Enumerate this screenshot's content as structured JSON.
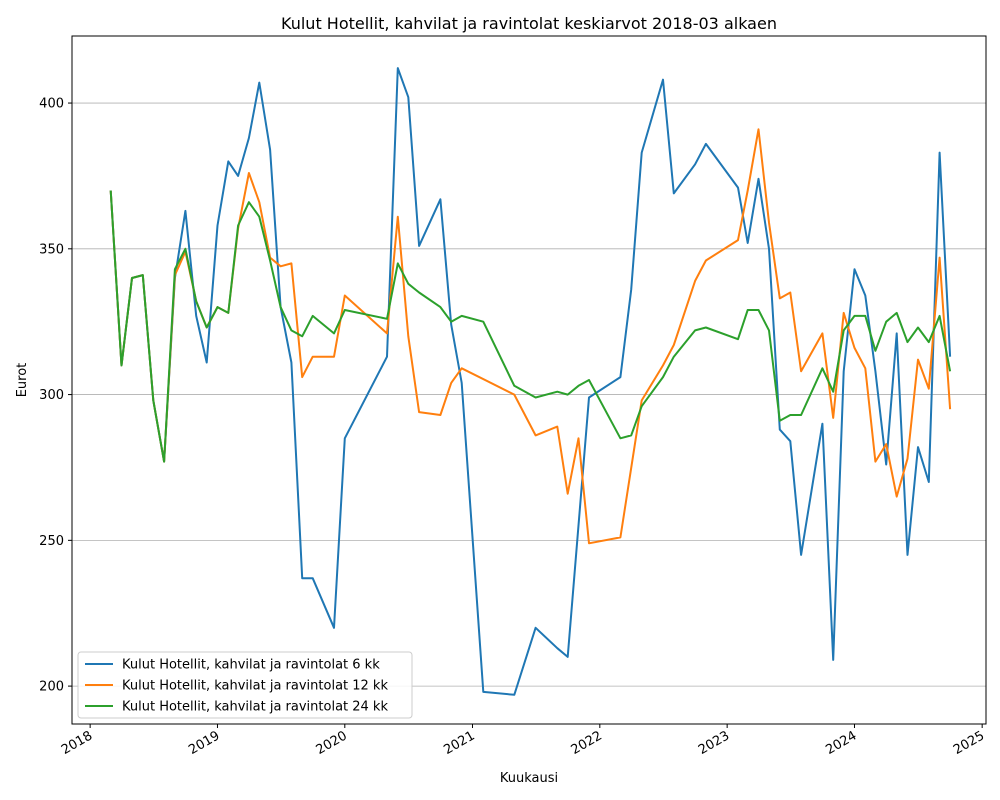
{
  "chart_data": {
    "type": "line",
    "title": "Kulut Hotellit, kahvilat ja ravintolat keskiarvot 2018-03 alkaen",
    "xlabel": "Kuukausi",
    "ylabel": "Eurot",
    "x_ticks": [
      "2018",
      "2019",
      "2020",
      "2021",
      "2022",
      "2023",
      "2024",
      "2025"
    ],
    "y_ticks": [
      200,
      250,
      300,
      350,
      400
    ],
    "xlim": [
      "2017-11-10",
      "2025-01-12"
    ],
    "ylim": [
      187,
      423
    ],
    "grid": "horizontal",
    "legend_position": "lower-left",
    "series": [
      {
        "name": "Kulut Hotellit, kahvilat ja ravintolat 6 kk",
        "color": "#1f77b4",
        "points": [
          [
            "2018-03-01",
            370
          ],
          [
            "2018-04-01",
            310
          ],
          [
            "2018-05-01",
            340
          ],
          [
            "2018-06-01",
            341
          ],
          [
            "2018-07-01",
            298
          ],
          [
            "2018-08-01",
            277
          ],
          [
            "2018-09-01",
            340
          ],
          [
            "2018-10-01",
            363
          ],
          [
            "2018-11-01",
            327
          ],
          [
            "2018-12-01",
            311
          ],
          [
            "2019-01-01",
            358
          ],
          [
            "2019-02-01",
            380
          ],
          [
            "2019-03-01",
            375
          ],
          [
            "2019-04-01",
            388
          ],
          [
            "2019-05-01",
            407
          ],
          [
            "2019-06-01",
            384
          ],
          [
            "2019-07-01",
            330
          ],
          [
            "2019-08-01",
            311
          ],
          [
            "2019-09-01",
            237
          ],
          [
            "2019-10-01",
            237
          ],
          [
            "2019-12-01",
            220
          ],
          [
            "2020-01-01",
            285
          ],
          [
            "2020-05-01",
            313
          ],
          [
            "2020-06-01",
            412
          ],
          [
            "2020-07-01",
            402
          ],
          [
            "2020-08-01",
            351
          ],
          [
            "2020-10-01",
            367
          ],
          [
            "2020-11-01",
            324
          ],
          [
            "2020-12-01",
            304
          ],
          [
            "2021-02-01",
            198
          ],
          [
            "2021-05-01",
            197
          ],
          [
            "2021-07-01",
            220
          ],
          [
            "2021-09-01",
            213
          ],
          [
            "2021-10-01",
            210
          ],
          [
            "2021-12-01",
            299
          ],
          [
            "2022-03-01",
            306
          ],
          [
            "2022-04-01",
            336
          ],
          [
            "2022-05-01",
            383
          ],
          [
            "2022-07-01",
            408
          ],
          [
            "2022-08-01",
            369
          ],
          [
            "2022-10-01",
            379
          ],
          [
            "2022-11-01",
            386
          ],
          [
            "2023-02-01",
            371
          ],
          [
            "2023-03-01",
            352
          ],
          [
            "2023-04-01",
            374
          ],
          [
            "2023-05-01",
            350
          ],
          [
            "2023-06-01",
            288
          ],
          [
            "2023-07-01",
            284
          ],
          [
            "2023-08-01",
            245
          ],
          [
            "2023-10-01",
            290
          ],
          [
            "2023-11-01",
            209
          ],
          [
            "2023-12-01",
            308
          ],
          [
            "2024-01-01",
            343
          ],
          [
            "2024-02-01",
            334
          ],
          [
            "2024-03-01",
            308
          ],
          [
            "2024-04-01",
            276
          ],
          [
            "2024-05-01",
            321
          ],
          [
            "2024-06-01",
            245
          ],
          [
            "2024-07-01",
            282
          ],
          [
            "2024-08-01",
            270
          ],
          [
            "2024-09-01",
            383
          ],
          [
            "2024-10-01",
            313
          ]
        ]
      },
      {
        "name": "Kulut Hotellit, kahvilat ja ravintolat 12 kk",
        "color": "#ff7f0e",
        "points": [
          [
            "2018-03-01",
            370
          ],
          [
            "2018-04-01",
            310
          ],
          [
            "2018-05-01",
            340
          ],
          [
            "2018-06-01",
            341
          ],
          [
            "2018-07-01",
            298
          ],
          [
            "2018-08-01",
            277
          ],
          [
            "2018-09-01",
            341
          ],
          [
            "2018-10-01",
            349
          ],
          [
            "2018-11-01",
            332
          ],
          [
            "2018-12-01",
            323
          ],
          [
            "2019-01-01",
            330
          ],
          [
            "2019-02-01",
            328
          ],
          [
            "2019-03-01",
            357
          ],
          [
            "2019-04-01",
            376
          ],
          [
            "2019-05-01",
            366
          ],
          [
            "2019-06-01",
            347
          ],
          [
            "2019-07-01",
            344
          ],
          [
            "2019-08-01",
            345
          ],
          [
            "2019-09-01",
            306
          ],
          [
            "2019-10-01",
            313
          ],
          [
            "2019-12-01",
            313
          ],
          [
            "2020-01-01",
            334
          ],
          [
            "2020-05-01",
            321
          ],
          [
            "2020-06-01",
            361
          ],
          [
            "2020-07-01",
            320
          ],
          [
            "2020-08-01",
            294
          ],
          [
            "2020-10-01",
            293
          ],
          [
            "2020-11-01",
            304
          ],
          [
            "2020-12-01",
            309
          ],
          [
            "2021-05-01",
            300
          ],
          [
            "2021-07-01",
            286
          ],
          [
            "2021-09-01",
            289
          ],
          [
            "2021-10-01",
            266
          ],
          [
            "2021-11-01",
            285
          ],
          [
            "2021-12-01",
            249
          ],
          [
            "2022-03-01",
            251
          ],
          [
            "2022-05-01",
            298
          ],
          [
            "2022-07-01",
            310
          ],
          [
            "2022-08-01",
            317
          ],
          [
            "2022-10-01",
            339
          ],
          [
            "2022-11-01",
            346
          ],
          [
            "2023-02-01",
            353
          ],
          [
            "2023-03-01",
            370
          ],
          [
            "2023-04-01",
            391
          ],
          [
            "2023-05-01",
            359
          ],
          [
            "2023-06-01",
            333
          ],
          [
            "2023-07-01",
            335
          ],
          [
            "2023-08-01",
            308
          ],
          [
            "2023-10-01",
            321
          ],
          [
            "2023-11-01",
            292
          ],
          [
            "2023-12-01",
            328
          ],
          [
            "2024-01-01",
            316
          ],
          [
            "2024-02-01",
            309
          ],
          [
            "2024-03-01",
            277
          ],
          [
            "2024-04-01",
            283
          ],
          [
            "2024-05-01",
            265
          ],
          [
            "2024-06-01",
            278
          ],
          [
            "2024-07-01",
            312
          ],
          [
            "2024-08-01",
            302
          ],
          [
            "2024-09-01",
            347
          ],
          [
            "2024-10-01",
            295
          ]
        ]
      },
      {
        "name": "Kulut Hotellit, kahvilat ja ravintolat 24 kk",
        "color": "#2ca02c",
        "points": [
          [
            "2018-03-01",
            370
          ],
          [
            "2018-04-01",
            310
          ],
          [
            "2018-05-01",
            340
          ],
          [
            "2018-06-01",
            341
          ],
          [
            "2018-07-01",
            298
          ],
          [
            "2018-08-01",
            277
          ],
          [
            "2018-09-01",
            343
          ],
          [
            "2018-10-01",
            350
          ],
          [
            "2018-11-01",
            332
          ],
          [
            "2018-12-01",
            323
          ],
          [
            "2019-01-01",
            330
          ],
          [
            "2019-02-01",
            328
          ],
          [
            "2019-03-01",
            358
          ],
          [
            "2019-04-01",
            366
          ],
          [
            "2019-05-01",
            361
          ],
          [
            "2019-06-01",
            346
          ],
          [
            "2019-07-01",
            330
          ],
          [
            "2019-08-01",
            322
          ],
          [
            "2019-09-01",
            320
          ],
          [
            "2019-10-01",
            327
          ],
          [
            "2019-12-01",
            321
          ],
          [
            "2020-01-01",
            329
          ],
          [
            "2020-05-01",
            326
          ],
          [
            "2020-06-01",
            345
          ],
          [
            "2020-07-01",
            338
          ],
          [
            "2020-08-01",
            335
          ],
          [
            "2020-10-01",
            330
          ],
          [
            "2020-11-01",
            325
          ],
          [
            "2020-12-01",
            327
          ],
          [
            "2021-02-01",
            325
          ],
          [
            "2021-05-01",
            303
          ],
          [
            "2021-07-01",
            299
          ],
          [
            "2021-09-01",
            301
          ],
          [
            "2021-10-01",
            300
          ],
          [
            "2021-11-01",
            303
          ],
          [
            "2021-12-01",
            305
          ],
          [
            "2022-03-01",
            285
          ],
          [
            "2022-04-01",
            286
          ],
          [
            "2022-05-01",
            296
          ],
          [
            "2022-07-01",
            306
          ],
          [
            "2022-08-01",
            313
          ],
          [
            "2022-10-01",
            322
          ],
          [
            "2022-11-01",
            323
          ],
          [
            "2023-02-01",
            319
          ],
          [
            "2023-03-01",
            329
          ],
          [
            "2023-04-01",
            329
          ],
          [
            "2023-05-01",
            322
          ],
          [
            "2023-06-01",
            291
          ],
          [
            "2023-07-01",
            293
          ],
          [
            "2023-08-01",
            293
          ],
          [
            "2023-10-01",
            309
          ],
          [
            "2023-11-01",
            301
          ],
          [
            "2023-12-01",
            322
          ],
          [
            "2024-01-01",
            327
          ],
          [
            "2024-02-01",
            327
          ],
          [
            "2024-03-01",
            315
          ],
          [
            "2024-04-01",
            325
          ],
          [
            "2024-05-01",
            328
          ],
          [
            "2024-06-01",
            318
          ],
          [
            "2024-07-01",
            323
          ],
          [
            "2024-08-01",
            318
          ],
          [
            "2024-09-01",
            327
          ],
          [
            "2024-10-01",
            308
          ]
        ]
      }
    ]
  }
}
